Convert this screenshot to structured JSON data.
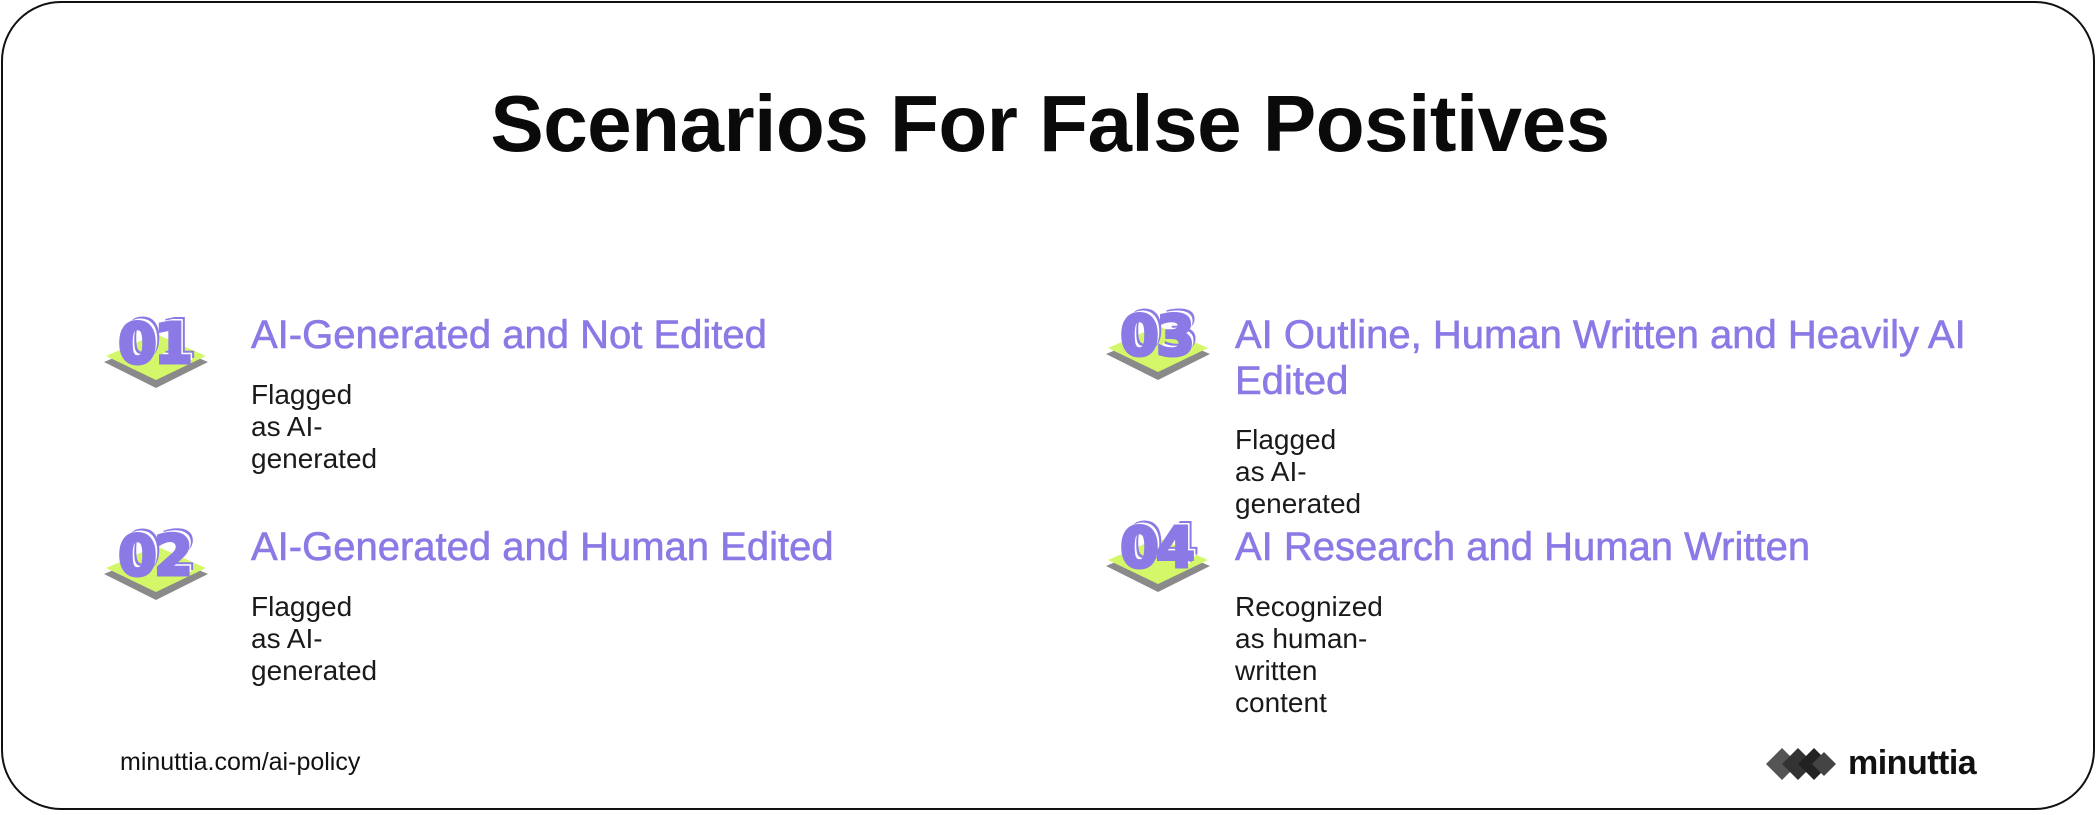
{
  "title": "Scenarios For False Positives",
  "items": [
    {
      "num": "01",
      "title": "AI-Generated and Not Edited",
      "desc": "Flagged as AI-generated"
    },
    {
      "num": "02",
      "title": "AI-Generated and Human Edited",
      "desc": "Flagged as AI-generated"
    },
    {
      "num": "03",
      "title": "AI Outline, Human Written and Heavily AI Edited",
      "desc": "Flagged as AI-generated"
    },
    {
      "num": "04",
      "title": "AI Research and Human Written",
      "desc": "Recognized as human-written content"
    }
  ],
  "footer": {
    "url": "minuttia.com/ai-policy",
    "brand": "minuttia"
  },
  "colors": {
    "accent": "#8b7ae6",
    "badge": "#d4f76a",
    "badge_edge": "#8a8a8a",
    "text": "#111111"
  }
}
